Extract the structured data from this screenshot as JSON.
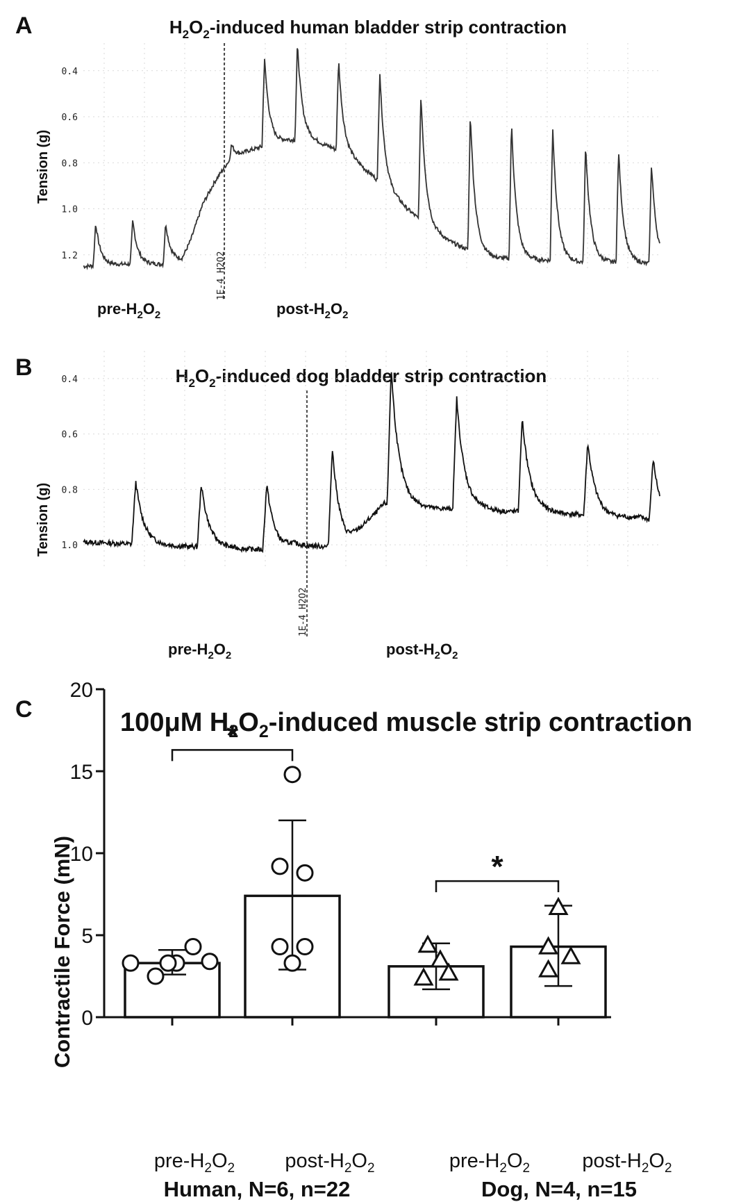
{
  "panels": {
    "a": {
      "letter": "A",
      "title": {
        "base": "H",
        "sub1": "2",
        "mid": "O",
        "sub2": "2",
        "rest": "-induced human bladder strip contraction"
      },
      "ylabel": "Tension (g)",
      "yticks": [
        "1.2",
        "1.0",
        "0.8",
        "0.6",
        "0.4"
      ],
      "marker": "1E-4  H2O2",
      "pre_label": {
        "text": "pre-H",
        "sub1": "2",
        "mid": "O",
        "sub2": "2"
      },
      "post_label": {
        "text": "post-H",
        "sub1": "2",
        "mid": "O",
        "sub2": "2"
      }
    },
    "b": {
      "letter": "B",
      "title": {
        "base": "H",
        "sub1": "2",
        "mid": "O",
        "sub2": "2",
        "rest": "-induced dog bladder strip contraction"
      },
      "ylabel": "Tension (g)",
      "yticks": [
        "1.0",
        "0.8",
        "0.6",
        "0.4"
      ],
      "marker": "1E-4  H2O2",
      "pre_label": {
        "text": "pre-H",
        "sub1": "2",
        "mid": "O",
        "sub2": "2"
      },
      "post_label": {
        "text": "post-H",
        "sub1": "2",
        "mid": "O",
        "sub2": "2"
      }
    },
    "c": {
      "letter": "C",
      "title": {
        "base": "100μM H",
        "sub1": "2",
        "mid": "O",
        "sub2": "2",
        "rest": "-induced muscle strip contraction"
      },
      "ylabel": "Contractile Force (mN)",
      "bar_labels": [
        {
          "text": "pre-H",
          "sub1": "2",
          "mid": "O",
          "sub2": "2"
        },
        {
          "text": "post-H",
          "sub1": "2",
          "mid": "O",
          "sub2": "2"
        },
        {
          "text": "pre-H",
          "sub1": "2",
          "mid": "O",
          "sub2": "2"
        },
        {
          "text": "post-H",
          "sub1": "2",
          "mid": "O",
          "sub2": "2"
        }
      ],
      "groups": [
        "Human, N=6, n=22",
        "Dog, N=4, n=15"
      ],
      "significance": [
        "*",
        "*"
      ]
    }
  },
  "chart_data": [
    {
      "type": "line",
      "panel": "A",
      "ylim": [
        0.33,
        1.32
      ],
      "yticks": [
        0.4,
        0.6,
        0.8,
        1.0,
        1.2
      ],
      "baseline": [
        [
          0,
          0.35
        ],
        [
          0.1,
          0.36
        ],
        [
          0.2,
          0.36
        ],
        [
          0.24,
          0.38
        ],
        [
          0.26,
          0.46
        ],
        [
          0.29,
          0.62
        ],
        [
          0.32,
          0.72
        ],
        [
          0.35,
          0.8
        ],
        [
          0.4,
          0.85
        ],
        [
          0.45,
          0.88
        ],
        [
          0.5,
          0.9
        ],
        [
          0.55,
          0.9
        ],
        [
          0.6,
          0.87
        ],
        [
          0.65,
          0.82
        ],
        [
          0.7,
          0.75
        ],
        [
          0.75,
          0.66
        ],
        [
          0.8,
          0.58
        ],
        [
          0.85,
          0.5
        ],
        [
          0.9,
          0.45
        ],
        [
          0.95,
          0.41
        ],
        [
          1.0,
          0.39
        ],
        [
          1.05,
          0.38
        ],
        [
          1.1,
          0.38
        ],
        [
          1.2,
          0.37
        ],
        [
          1.3,
          0.37
        ],
        [
          1.4,
          0.36
        ]
      ],
      "spikes": [
        [
          0.03,
          0.54
        ],
        [
          0.12,
          0.55
        ],
        [
          0.2,
          0.54
        ],
        [
          0.36,
          0.88
        ],
        [
          0.44,
          1.26
        ],
        [
          0.52,
          1.32
        ],
        [
          0.62,
          1.25
        ],
        [
          0.72,
          1.2
        ],
        [
          0.82,
          1.1
        ],
        [
          0.94,
          1.02
        ],
        [
          1.04,
          0.98
        ],
        [
          1.14,
          0.96
        ],
        [
          1.22,
          0.88
        ],
        [
          1.3,
          0.86
        ],
        [
          1.38,
          0.8
        ]
      ],
      "drug_marker_x": 0.27
    },
    {
      "type": "line",
      "panel": "B",
      "ylim": [
        0.31,
        1.1
      ],
      "yticks": [
        0.4,
        0.6,
        0.8,
        1.0
      ],
      "baseline": [
        [
          0,
          0.41
        ],
        [
          0.1,
          0.4
        ],
        [
          0.2,
          0.39
        ],
        [
          0.3,
          0.38
        ],
        [
          0.32,
          0.4
        ],
        [
          0.4,
          0.39
        ],
        [
          0.44,
          0.5
        ],
        [
          0.46,
          0.55
        ],
        [
          0.5,
          0.54
        ],
        [
          0.55,
          0.53
        ],
        [
          0.6,
          0.53
        ],
        [
          0.65,
          0.52
        ],
        [
          0.7,
          0.52
        ],
        [
          0.75,
          0.51
        ],
        [
          0.8,
          0.5
        ],
        [
          0.85,
          0.5
        ],
        [
          0.88,
          0.48
        ]
      ],
      "spikes": [
        [
          0.08,
          0.63
        ],
        [
          0.18,
          0.62
        ],
        [
          0.28,
          0.62
        ],
        [
          0.38,
          0.75
        ],
        [
          0.47,
          1.04
        ],
        [
          0.57,
          0.93
        ],
        [
          0.67,
          0.86
        ],
        [
          0.77,
          0.77
        ],
        [
          0.87,
          0.71
        ]
      ],
      "drug_marker_x": 0.33
    },
    {
      "type": "bar",
      "panel": "C",
      "categories": [
        "pre-H2O2",
        "post-H2O2",
        "pre-H2O2",
        "post-H2O2"
      ],
      "groups": [
        "Human, N=6, n=22",
        "Dog, N=4, n=15"
      ],
      "ylim": [
        0,
        20
      ],
      "yticks": [
        0,
        5,
        10,
        15,
        20
      ],
      "ylabel": "Contractile Force (mN)",
      "title": "100μM H2O2-induced muscle strip contraction",
      "values": [
        3.3,
        7.4,
        3.1,
        4.3
      ],
      "error_low": [
        2.6,
        2.9,
        1.7,
        1.9
      ],
      "error_high": [
        4.1,
        12.0,
        4.5,
        6.8
      ],
      "points": [
        {
          "marker": "circle",
          "x_offsets": [
            -0.5,
            -0.2,
            0.05,
            0.25,
            -0.05,
            0.45
          ],
          "y": [
            3.3,
            2.5,
            3.3,
            4.3,
            3.3,
            3.4
          ]
        },
        {
          "marker": "circle",
          "x_offsets": [
            0.0,
            -0.15,
            0.15,
            -0.15,
            0.15,
            0.0
          ],
          "y": [
            14.8,
            9.2,
            8.8,
            4.3,
            4.3,
            3.3
          ]
        },
        {
          "marker": "triangle",
          "x_offsets": [
            -0.1,
            0.05,
            -0.15,
            0.15
          ],
          "y": [
            4.4,
            3.5,
            2.4,
            2.7
          ]
        },
        {
          "marker": "triangle",
          "x_offsets": [
            0.0,
            -0.12,
            0.15,
            -0.12
          ],
          "y": [
            6.7,
            4.3,
            3.7,
            2.9
          ]
        }
      ],
      "significance": [
        {
          "between": [
            0,
            1
          ],
          "y": 16.3,
          "label": "*"
        },
        {
          "between": [
            2,
            3
          ],
          "y": 8.3,
          "label": "*"
        }
      ]
    }
  ]
}
